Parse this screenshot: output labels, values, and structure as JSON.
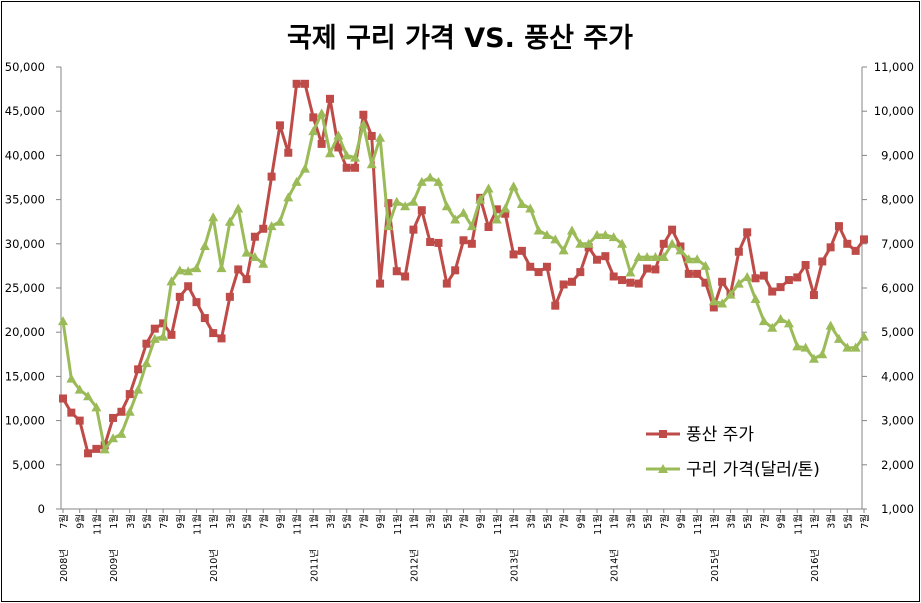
{
  "chart_data": {
    "type": "line",
    "title": "국제 구리 가격 VS. 풍산 주가",
    "legend_position": "bottom-right, inside plot",
    "grid": false,
    "ylim_left": [
      0,
      50000
    ],
    "ylim_right": [
      1000,
      11000
    ],
    "left_ticks": [
      "0",
      "5,000",
      "10,000",
      "15,000",
      "20,000",
      "25,000",
      "30,000",
      "35,000",
      "40,000",
      "45,000",
      "50,000"
    ],
    "right_ticks": [
      "1,000",
      "2,000",
      "3,000",
      "4,000",
      "5,000",
      "6,000",
      "7,000",
      "8,000",
      "9,000",
      "10,000",
      "11,000"
    ],
    "x_start": "2008-07",
    "x_end": "2016-07",
    "month_tick_labels": [
      "7월",
      "9월",
      "11월",
      "1월",
      "3월",
      "5월",
      "7월",
      "9월",
      "11월",
      "1월",
      "3월",
      "5월",
      "7월",
      "9월",
      "11월",
      "1월",
      "3월",
      "5월",
      "7월",
      "9월",
      "11월",
      "1월",
      "3월",
      "5월",
      "7월",
      "9월",
      "11월",
      "1월",
      "3월",
      "5월",
      "7월",
      "9월",
      "11월",
      "1월",
      "3월",
      "5월",
      "7월",
      "9월",
      "11월",
      "1월",
      "3월",
      "5월",
      "7월",
      "9월",
      "11월",
      "1월",
      "3월",
      "5월",
      "7월"
    ],
    "year_labels": [
      {
        "label": "2008년",
        "month": "2008-07"
      },
      {
        "label": "2009년",
        "month": "2009-01"
      },
      {
        "label": "2010년",
        "month": "2010-01"
      },
      {
        "label": "2011년",
        "month": "2011-01"
      },
      {
        "label": "2012년",
        "month": "2012-01"
      },
      {
        "label": "2013년",
        "month": "2013-01"
      },
      {
        "label": "2014년",
        "month": "2014-01"
      },
      {
        "label": "2015년",
        "month": "2015-01"
      },
      {
        "label": "2016년",
        "month": "2016-01"
      }
    ],
    "series": [
      {
        "name": "풍산 주가",
        "axis": "left",
        "color": "#be4b48",
        "marker": "square",
        "values": [
          12500,
          10900,
          10000,
          6300,
          6800,
          7200,
          10300,
          11000,
          13000,
          15800,
          18700,
          20400,
          21000,
          19700,
          24000,
          25200,
          23400,
          21600,
          19900,
          19300,
          24000,
          27100,
          26000,
          30800,
          31700,
          37600,
          43400,
          40300,
          48100,
          48100,
          44300,
          41300,
          46400,
          40900,
          38600,
          38600,
          44600,
          42200,
          25500,
          34600,
          26900,
          26300,
          31600,
          33800,
          30200,
          30100,
          25500,
          27000,
          30400,
          30000,
          35200,
          31900,
          33900,
          33400,
          28800,
          29200,
          27400,
          26800,
          27400,
          23000,
          25400,
          25700,
          26800,
          29600,
          28200,
          28600,
          26300,
          25900,
          25600,
          25500,
          27200,
          27100,
          30000,
          31600,
          29700,
          26600,
          26600,
          25600,
          22800,
          25700,
          24300,
          29100,
          31300,
          26100,
          26400,
          24600,
          25100,
          25900,
          26200,
          27600,
          24200,
          28000,
          29600,
          32000,
          30000,
          29200,
          30500
        ]
      },
      {
        "name": "구리 가격(달러/톤)",
        "axis": "right",
        "color": "#9bbb59",
        "marker": "triangle",
        "values": [
          5250,
          3950,
          3700,
          3550,
          3300,
          2350,
          2600,
          2700,
          3200,
          3700,
          4300,
          4850,
          4900,
          6150,
          6400,
          6380,
          6450,
          6950,
          7600,
          6450,
          7500,
          7800,
          6800,
          6700,
          6550,
          7400,
          7500,
          8050,
          8400,
          8700,
          9550,
          9950,
          9050,
          9450,
          9000,
          8950,
          9700,
          8800,
          9400,
          7400,
          7950,
          7850,
          7950,
          8400,
          8500,
          8400,
          7850,
          7550,
          7700,
          7400,
          8000,
          8250,
          7550,
          7800,
          8300,
          7900,
          7800,
          7300,
          7200,
          7100,
          6850,
          7300,
          7000,
          7000,
          7200,
          7200,
          7150,
          7000,
          6350,
          6700,
          6700,
          6700,
          6700,
          7000,
          6850,
          6650,
          6650,
          6500,
          5700,
          5650,
          5850,
          6100,
          6250,
          5750,
          5250,
          5100,
          5300,
          5200,
          4680,
          4650,
          4400,
          4500,
          5150,
          4850,
          4650,
          4650,
          4900
        ]
      }
    ]
  }
}
